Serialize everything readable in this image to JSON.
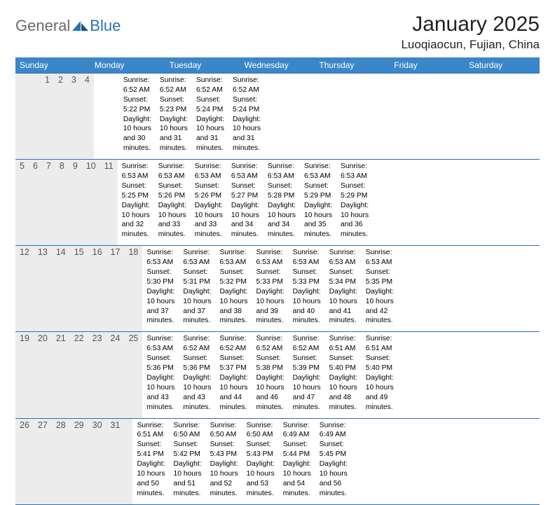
{
  "brand": {
    "text1": "General",
    "text2": "Blue"
  },
  "title": "January 2025",
  "location": "Luoqiaocun, Fujian, China",
  "colors": {
    "header_bar": "#3b86c8",
    "rule": "#2a71b8",
    "daynum_bg": "#ececec",
    "logo_gray": "#6a6a6a",
    "logo_blue": "#2a71b8",
    "page_bg": "#ffffff"
  },
  "typography": {
    "title_fontsize": 30,
    "location_fontsize": 17,
    "dow_fontsize": 12,
    "daynum_fontsize": 12.5,
    "detail_fontsize": 10.3
  },
  "daysOfWeek": [
    "Sunday",
    "Monday",
    "Tuesday",
    "Wednesday",
    "Thursday",
    "Friday",
    "Saturday"
  ],
  "weeks": [
    [
      null,
      null,
      null,
      {
        "n": "1",
        "sr": "6:52 AM",
        "ss": "5:22 PM",
        "dl": "10 hours and 30 minutes."
      },
      {
        "n": "2",
        "sr": "6:52 AM",
        "ss": "5:23 PM",
        "dl": "10 hours and 31 minutes."
      },
      {
        "n": "3",
        "sr": "6:52 AM",
        "ss": "5:24 PM",
        "dl": "10 hours and 31 minutes."
      },
      {
        "n": "4",
        "sr": "6:52 AM",
        "ss": "5:24 PM",
        "dl": "10 hours and 31 minutes."
      }
    ],
    [
      {
        "n": "5",
        "sr": "6:53 AM",
        "ss": "5:25 PM",
        "dl": "10 hours and 32 minutes."
      },
      {
        "n": "6",
        "sr": "6:53 AM",
        "ss": "5:26 PM",
        "dl": "10 hours and 33 minutes."
      },
      {
        "n": "7",
        "sr": "6:53 AM",
        "ss": "5:26 PM",
        "dl": "10 hours and 33 minutes."
      },
      {
        "n": "8",
        "sr": "6:53 AM",
        "ss": "5:27 PM",
        "dl": "10 hours and 34 minutes."
      },
      {
        "n": "9",
        "sr": "6:53 AM",
        "ss": "5:28 PM",
        "dl": "10 hours and 34 minutes."
      },
      {
        "n": "10",
        "sr": "6:53 AM",
        "ss": "5:29 PM",
        "dl": "10 hours and 35 minutes."
      },
      {
        "n": "11",
        "sr": "6:53 AM",
        "ss": "5:29 PM",
        "dl": "10 hours and 36 minutes."
      }
    ],
    [
      {
        "n": "12",
        "sr": "6:53 AM",
        "ss": "5:30 PM",
        "dl": "10 hours and 37 minutes."
      },
      {
        "n": "13",
        "sr": "6:53 AM",
        "ss": "5:31 PM",
        "dl": "10 hours and 37 minutes."
      },
      {
        "n": "14",
        "sr": "6:53 AM",
        "ss": "5:32 PM",
        "dl": "10 hours and 38 minutes."
      },
      {
        "n": "15",
        "sr": "6:53 AM",
        "ss": "5:33 PM",
        "dl": "10 hours and 39 minutes."
      },
      {
        "n": "16",
        "sr": "6:53 AM",
        "ss": "5:33 PM",
        "dl": "10 hours and 40 minutes."
      },
      {
        "n": "17",
        "sr": "6:53 AM",
        "ss": "5:34 PM",
        "dl": "10 hours and 41 minutes."
      },
      {
        "n": "18",
        "sr": "6:53 AM",
        "ss": "5:35 PM",
        "dl": "10 hours and 42 minutes."
      }
    ],
    [
      {
        "n": "19",
        "sr": "6:53 AM",
        "ss": "5:36 PM",
        "dl": "10 hours and 43 minutes."
      },
      {
        "n": "20",
        "sr": "6:52 AM",
        "ss": "5:36 PM",
        "dl": "10 hours and 43 minutes."
      },
      {
        "n": "21",
        "sr": "6:52 AM",
        "ss": "5:37 PM",
        "dl": "10 hours and 44 minutes."
      },
      {
        "n": "22",
        "sr": "6:52 AM",
        "ss": "5:38 PM",
        "dl": "10 hours and 46 minutes."
      },
      {
        "n": "23",
        "sr": "6:52 AM",
        "ss": "5:39 PM",
        "dl": "10 hours and 47 minutes."
      },
      {
        "n": "24",
        "sr": "6:51 AM",
        "ss": "5:40 PM",
        "dl": "10 hours and 48 minutes."
      },
      {
        "n": "25",
        "sr": "6:51 AM",
        "ss": "5:40 PM",
        "dl": "10 hours and 49 minutes."
      }
    ],
    [
      {
        "n": "26",
        "sr": "6:51 AM",
        "ss": "5:41 PM",
        "dl": "10 hours and 50 minutes."
      },
      {
        "n": "27",
        "sr": "6:50 AM",
        "ss": "5:42 PM",
        "dl": "10 hours and 51 minutes."
      },
      {
        "n": "28",
        "sr": "6:50 AM",
        "ss": "5:43 PM",
        "dl": "10 hours and 52 minutes."
      },
      {
        "n": "29",
        "sr": "6:50 AM",
        "ss": "5:43 PM",
        "dl": "10 hours and 53 minutes."
      },
      {
        "n": "30",
        "sr": "6:49 AM",
        "ss": "5:44 PM",
        "dl": "10 hours and 54 minutes."
      },
      {
        "n": "31",
        "sr": "6:49 AM",
        "ss": "5:45 PM",
        "dl": "10 hours and 56 minutes."
      },
      null
    ]
  ],
  "labels": {
    "sunrise": "Sunrise:",
    "sunset": "Sunset:",
    "daylight": "Daylight:"
  }
}
